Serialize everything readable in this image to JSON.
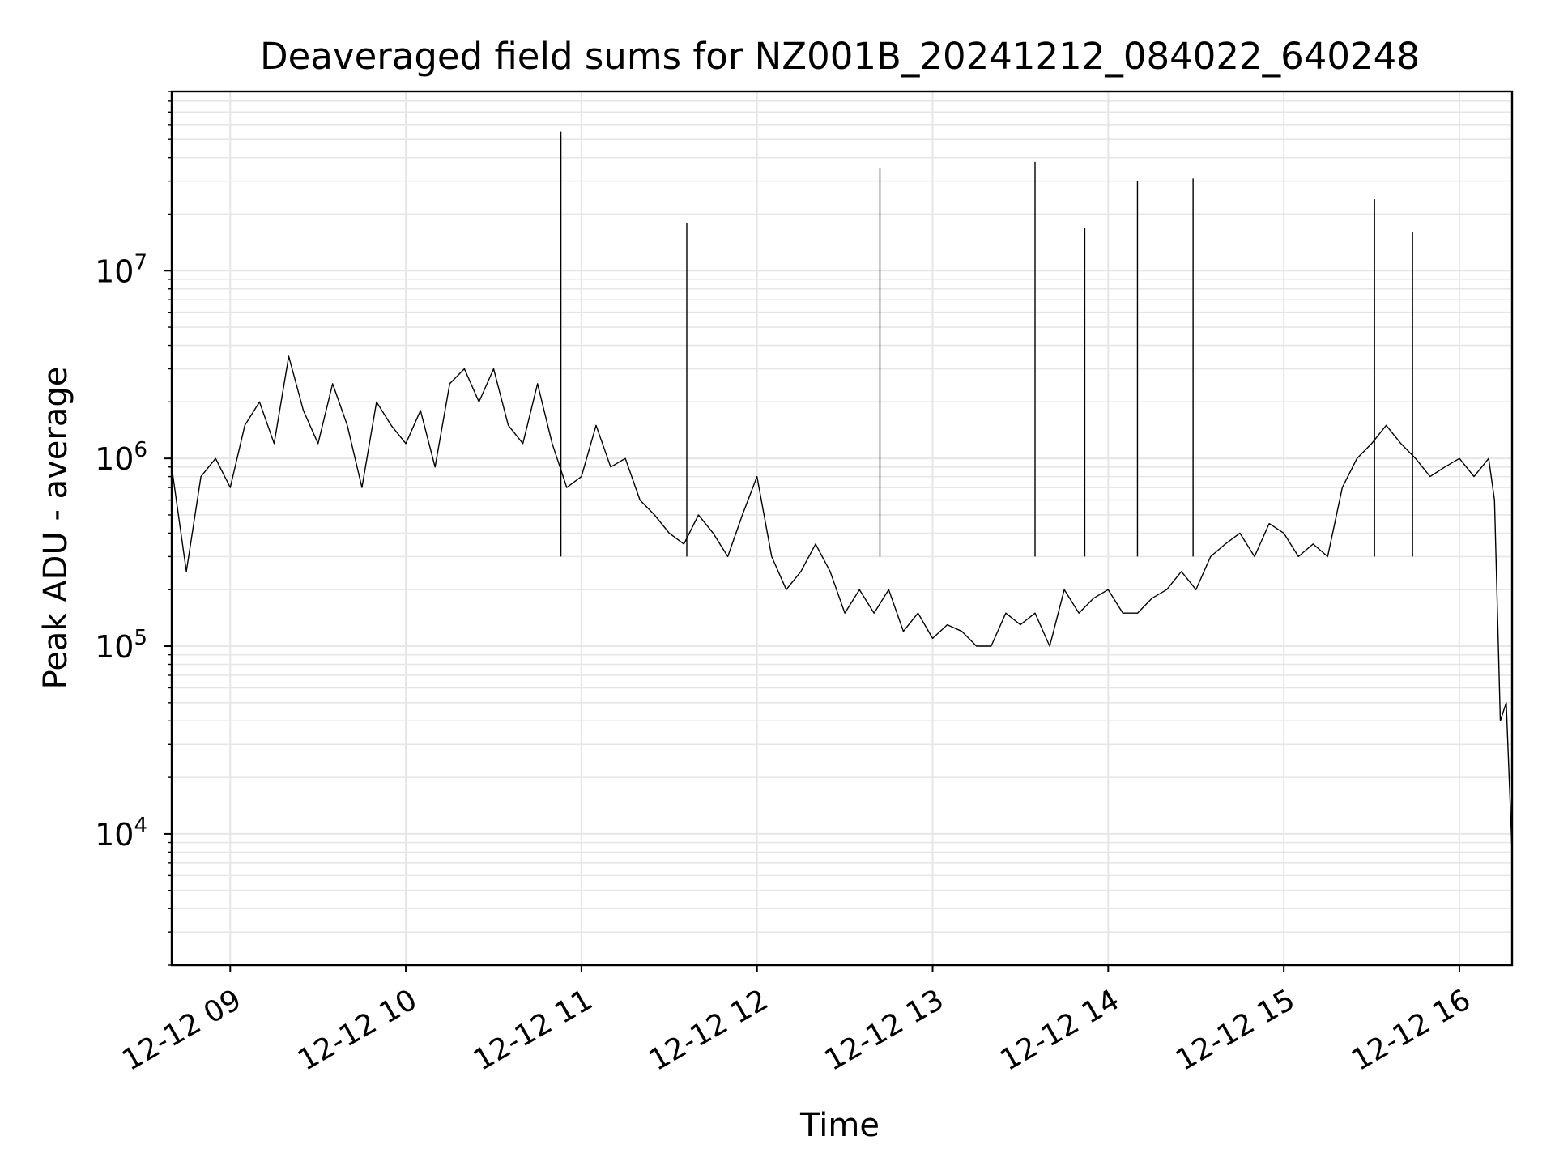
{
  "chart_data": {
    "type": "line",
    "title": "Deaveraged field sums for NZ001B_20241212_084022_640248",
    "xlabel": "Time",
    "ylabel": "Peak ADU - average",
    "x_tick_labels": [
      "12-12 09",
      "12-12 10",
      "12-12 11",
      "12-12 12",
      "12-12 13",
      "12-12 14",
      "12-12 15",
      "12-12 16"
    ],
    "x_tick_values": [
      "2024-12-12 09:00",
      "2024-12-12 10:00",
      "2024-12-12 11:00",
      "2024-12-12 12:00",
      "2024-12-12 13:00",
      "2024-12-12 14:00",
      "2024-12-12 15:00",
      "2024-12-12 16:00"
    ],
    "xlim": [
      "2024-12-12 08:40",
      "2024-12-12 16:18"
    ],
    "y_scale": "log",
    "y_tick_labels": [
      {
        "base": "10",
        "exp": "4"
      },
      {
        "base": "10",
        "exp": "5"
      },
      {
        "base": "10",
        "exp": "6"
      },
      {
        "base": "10",
        "exp": "7"
      }
    ],
    "y_tick_values": [
      10000,
      100000,
      1000000,
      10000000
    ],
    "ylim": [
      2000,
      90000000
    ],
    "grid": true,
    "line_color": "#000000",
    "grid_color": "#e6e6e6",
    "series": [
      {
        "x": [
          "2024-12-12 08:40",
          "2024-12-12 08:45",
          "2024-12-12 08:50",
          "2024-12-12 08:55",
          "2024-12-12 09:00",
          "2024-12-12 09:05",
          "2024-12-12 09:10",
          "2024-12-12 09:15",
          "2024-12-12 09:20",
          "2024-12-12 09:25",
          "2024-12-12 09:30",
          "2024-12-12 09:35",
          "2024-12-12 09:40",
          "2024-12-12 09:45",
          "2024-12-12 09:50",
          "2024-12-12 09:55",
          "2024-12-12 10:00",
          "2024-12-12 10:05",
          "2024-12-12 10:10",
          "2024-12-12 10:15",
          "2024-12-12 10:20",
          "2024-12-12 10:25",
          "2024-12-12 10:30",
          "2024-12-12 10:35",
          "2024-12-12 10:40",
          "2024-12-12 10:45",
          "2024-12-12 10:50",
          "2024-12-12 10:55",
          "2024-12-12 11:00",
          "2024-12-12 11:05",
          "2024-12-12 11:10",
          "2024-12-12 11:15",
          "2024-12-12 11:20",
          "2024-12-12 11:25",
          "2024-12-12 11:30",
          "2024-12-12 11:35",
          "2024-12-12 11:40",
          "2024-12-12 11:45",
          "2024-12-12 11:50",
          "2024-12-12 11:55",
          "2024-12-12 12:00",
          "2024-12-12 12:05",
          "2024-12-12 12:10",
          "2024-12-12 12:15",
          "2024-12-12 12:20",
          "2024-12-12 12:25",
          "2024-12-12 12:30",
          "2024-12-12 12:35",
          "2024-12-12 12:40",
          "2024-12-12 12:45",
          "2024-12-12 12:50",
          "2024-12-12 12:55",
          "2024-12-12 13:00",
          "2024-12-12 13:05",
          "2024-12-12 13:10",
          "2024-12-12 13:15",
          "2024-12-12 13:20",
          "2024-12-12 13:25",
          "2024-12-12 13:30",
          "2024-12-12 13:35",
          "2024-12-12 13:40",
          "2024-12-12 13:45",
          "2024-12-12 13:50",
          "2024-12-12 13:55",
          "2024-12-12 14:00",
          "2024-12-12 14:05",
          "2024-12-12 14:10",
          "2024-12-12 14:15",
          "2024-12-12 14:20",
          "2024-12-12 14:25",
          "2024-12-12 14:30",
          "2024-12-12 14:35",
          "2024-12-12 14:40",
          "2024-12-12 14:45",
          "2024-12-12 14:50",
          "2024-12-12 14:55",
          "2024-12-12 15:00",
          "2024-12-12 15:05",
          "2024-12-12 15:10",
          "2024-12-12 15:15",
          "2024-12-12 15:20",
          "2024-12-12 15:25",
          "2024-12-12 15:30",
          "2024-12-12 15:35",
          "2024-12-12 15:40",
          "2024-12-12 15:45",
          "2024-12-12 15:50",
          "2024-12-12 15:55",
          "2024-12-12 16:00",
          "2024-12-12 16:05",
          "2024-12-12 16:10",
          "2024-12-12 16:12",
          "2024-12-12 16:14",
          "2024-12-12 16:16",
          "2024-12-12 16:18"
        ],
        "y": [
          900000,
          250000,
          800000,
          1000000,
          700000,
          1500000,
          2000000,
          1200000,
          3500000,
          1800000,
          1200000,
          2500000,
          1500000,
          700000,
          2000000,
          1500000,
          1200000,
          1800000,
          900000,
          2500000,
          3000000,
          2000000,
          3000000,
          1500000,
          1200000,
          2500000,
          1200000,
          700000,
          800000,
          1500000,
          900000,
          1000000,
          600000,
          500000,
          400000,
          350000,
          500000,
          400000,
          300000,
          500000,
          800000,
          300000,
          200000,
          250000,
          350000,
          250000,
          150000,
          200000,
          150000,
          200000,
          120000,
          150000,
          110000,
          130000,
          120000,
          100000,
          100000,
          150000,
          130000,
          150000,
          100000,
          200000,
          150000,
          180000,
          200000,
          150000,
          150000,
          180000,
          200000,
          250000,
          200000,
          300000,
          350000,
          400000,
          300000,
          450000,
          400000,
          300000,
          350000,
          300000,
          700000,
          1000000,
          1200000,
          1500000,
          1200000,
          1000000,
          800000,
          900000,
          1000000,
          800000,
          1000000,
          600000,
          40000,
          50000,
          8000
        ]
      }
    ],
    "annotations_spikes": [
      {
        "x": "2024-12-12 10:53",
        "y": 55000000
      },
      {
        "x": "2024-12-12 12:42",
        "y": 35000000
      },
      {
        "x": "2024-12-12 13:35",
        "y": 38000000
      },
      {
        "x": "2024-12-12 14:10",
        "y": 30000000
      },
      {
        "x": "2024-12-12 14:29",
        "y": 31000000
      },
      {
        "x": "2024-12-12 15:31",
        "y": 24000000
      },
      {
        "x": "2024-12-12 15:44",
        "y": 16000000
      },
      {
        "x": "2024-12-12 13:52",
        "y": 17000000
      },
      {
        "x": "2024-12-12 11:36",
        "y": 18000000
      }
    ]
  }
}
